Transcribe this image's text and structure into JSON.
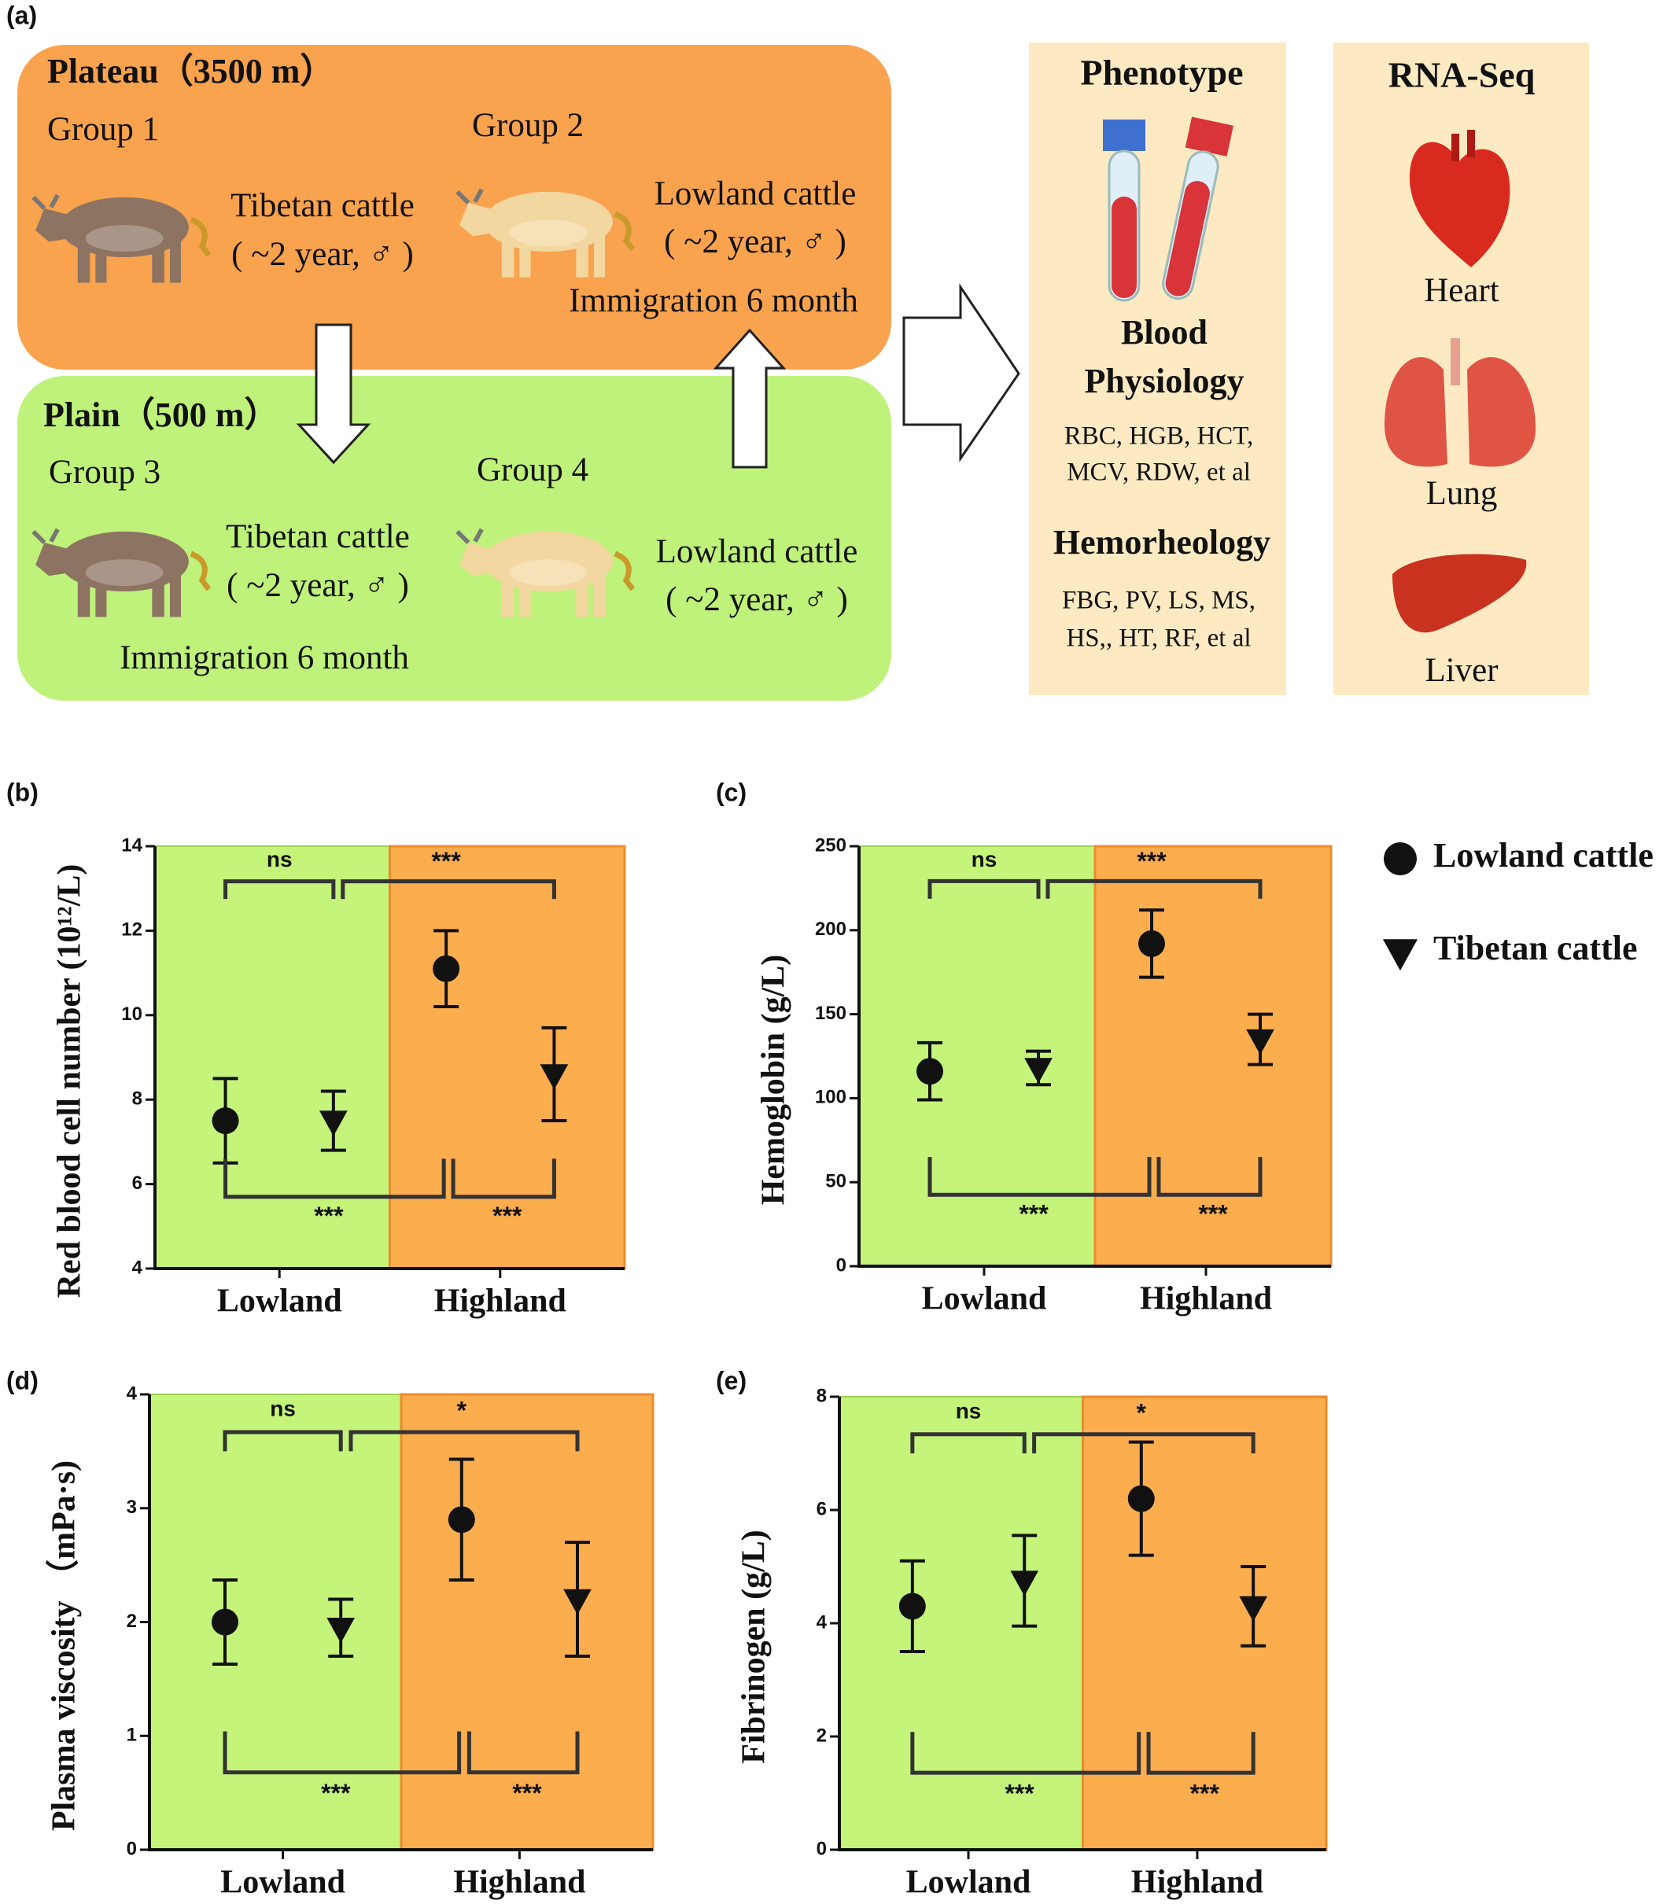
{
  "diagram": {
    "label": "(a)",
    "plateau": {
      "title": "Plateau（3500 m）",
      "groups": [
        {
          "name": "Group 1",
          "breed": "Tibetan cattle",
          "detail": "( ~2 year, ♂ )"
        },
        {
          "name": "Group 2",
          "breed": "Lowland cattle",
          "detail": "( ~2 year, ♂ )",
          "note": "Immigration 6 month"
        }
      ]
    },
    "plain": {
      "title": "Plain（500 m）",
      "groups": [
        {
          "name": "Group 3",
          "breed": "Tibetan cattle",
          "detail": "( ~2 year, ♂ )",
          "note": "Immigration 6 month"
        },
        {
          "name": "Group 4",
          "breed": "Lowland cattle",
          "detail": "( ~2 year, ♂ )"
        }
      ]
    },
    "phenotype": {
      "title": "Phenotype",
      "blood_title": [
        "Blood",
        "Physiology"
      ],
      "blood_items": [
        "RBC, HGB, HCT,",
        "MCV, RDW, et al"
      ],
      "hemo_title": "Hemorheology",
      "hemo_items": [
        "FBG, PV, LS, MS,",
        "HS,, HT, RF, et al"
      ]
    },
    "rnaseq": {
      "title": "RNA-Seq",
      "organs": [
        "Heart",
        "Lung",
        "Liver"
      ]
    }
  },
  "legend": {
    "items": [
      {
        "name": "Lowland cattle",
        "marker": "circle"
      },
      {
        "name": "Tibetan cattle",
        "marker": "triangle"
      }
    ]
  },
  "chart_data": [
    {
      "type": "dotplot",
      "label": "(b)",
      "ylabel": "Red blood  cell number (10¹²/L)",
      "categories": [
        "Lowland",
        "Highland"
      ],
      "ylim": [
        4,
        14
      ],
      "yticks": [
        4,
        6,
        8,
        10,
        12,
        14
      ],
      "series": [
        {
          "marker": "circle",
          "values": [
            7.5,
            11.1
          ],
          "errors": [
            1.0,
            0.9
          ]
        },
        {
          "marker": "triangle",
          "values": [
            7.5,
            8.6
          ],
          "errors": [
            0.7,
            1.1
          ]
        }
      ],
      "annotations": {
        "top": [
          "ns",
          "***"
        ],
        "bottom": [
          "***",
          "***"
        ]
      }
    },
    {
      "type": "dotplot",
      "label": "(c)",
      "ylabel": "Hemoglobin (g/L)",
      "categories": [
        "Lowland",
        "Highland"
      ],
      "ylim": [
        0,
        250
      ],
      "yticks": [
        0,
        50,
        100,
        150,
        200,
        250
      ],
      "series": [
        {
          "marker": "circle",
          "values": [
            116,
            192
          ],
          "errors": [
            17,
            20
          ]
        },
        {
          "marker": "triangle",
          "values": [
            118,
            135
          ],
          "errors": [
            10,
            15
          ]
        }
      ],
      "annotations": {
        "top": [
          "ns",
          "***"
        ],
        "bottom": [
          "***",
          "***"
        ]
      }
    },
    {
      "type": "dotplot",
      "label": "(d)",
      "ylabel": "Plasma  viscosity （mPa·s)",
      "categories": [
        "Lowland",
        "Highland"
      ],
      "ylim": [
        0,
        4
      ],
      "yticks": [
        0,
        1,
        2,
        3,
        4
      ],
      "series": [
        {
          "marker": "circle",
          "values": [
            2.0,
            2.9
          ],
          "errors": [
            0.37,
            0.53
          ]
        },
        {
          "marker": "triangle",
          "values": [
            1.95,
            2.2
          ],
          "errors": [
            0.25,
            0.5
          ]
        }
      ],
      "annotations": {
        "top": [
          "ns",
          "*"
        ],
        "bottom": [
          "***",
          "***"
        ]
      }
    },
    {
      "type": "dotplot",
      "label": "(e)",
      "ylabel": "Fibrinogen (g/L)",
      "categories": [
        "Lowland",
        "Highland"
      ],
      "ylim": [
        0,
        8
      ],
      "yticks": [
        0,
        2,
        4,
        6,
        8
      ],
      "series": [
        {
          "marker": "circle",
          "values": [
            4.3,
            6.2
          ],
          "errors": [
            0.8,
            1.0
          ]
        },
        {
          "marker": "triangle",
          "values": [
            4.75,
            4.3
          ],
          "errors": [
            0.8,
            0.7
          ]
        }
      ],
      "annotations": {
        "top": [
          "ns",
          "*"
        ],
        "bottom": [
          "***",
          "***"
        ]
      }
    }
  ]
}
